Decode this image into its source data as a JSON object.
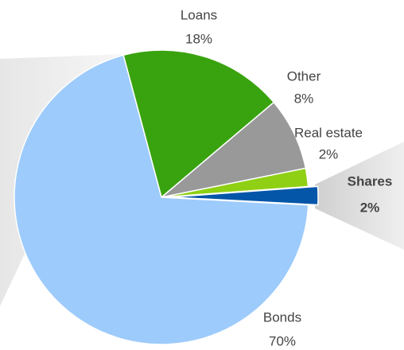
{
  "chart_data": {
    "type": "pie",
    "categories": [
      "Shares",
      "Real estate",
      "Other",
      "Loans",
      "Bonds"
    ],
    "values": [
      2,
      2,
      8,
      18,
      70
    ],
    "value_labels": [
      "2%",
      "2%",
      "8%",
      "18%",
      "70%"
    ],
    "colors": [
      "#0456a8",
      "#8fd014",
      "#999999",
      "#39a30f",
      "#9dcbfb"
    ],
    "exploded": [
      true,
      false,
      false,
      false,
      false
    ]
  }
}
